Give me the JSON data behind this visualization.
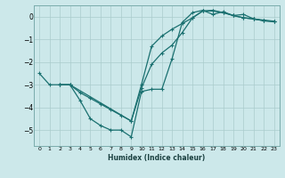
{
  "xlabel": "Humidex (Indice chaleur)",
  "bg_color": "#cce8ea",
  "grid_color": "#aacccc",
  "line_color": "#1a7070",
  "xlim": [
    -0.5,
    23.5
  ],
  "ylim": [
    -5.7,
    0.5
  ],
  "yticks": [
    0,
    -1,
    -2,
    -3,
    -4,
    -5
  ],
  "xticks": [
    0,
    1,
    2,
    3,
    4,
    5,
    6,
    7,
    8,
    9,
    10,
    11,
    12,
    13,
    14,
    15,
    16,
    17,
    18,
    19,
    20,
    21,
    22,
    23
  ],
  "line1_x": [
    0,
    1,
    2,
    3,
    4,
    5,
    6,
    7,
    8,
    9,
    10,
    11,
    12,
    13,
    14,
    15,
    16,
    17,
    18,
    19,
    20,
    21,
    22,
    23
  ],
  "line1_y": [
    -2.5,
    -3.0,
    -3.0,
    -3.0,
    -3.7,
    -4.5,
    -4.8,
    -5.0,
    -5.0,
    -5.3,
    -3.3,
    -3.2,
    -3.2,
    -1.85,
    -0.25,
    0.18,
    0.28,
    0.1,
    0.22,
    0.05,
    0.1,
    -0.1,
    -0.15,
    -0.2
  ],
  "line2_x": [
    2,
    3,
    4,
    5,
    6,
    7,
    8,
    9,
    10,
    11,
    12,
    13,
    14,
    15,
    16,
    17,
    18,
    19,
    20,
    21,
    22,
    23
  ],
  "line2_y": [
    -3.0,
    -3.0,
    -3.35,
    -3.6,
    -3.85,
    -4.1,
    -4.35,
    -4.6,
    -3.15,
    -2.1,
    -1.6,
    -1.25,
    -0.7,
    -0.05,
    0.25,
    0.28,
    0.18,
    0.05,
    -0.05,
    -0.1,
    -0.18,
    -0.22
  ],
  "line3_x": [
    2,
    3,
    9,
    10,
    11,
    12,
    13,
    14,
    15,
    16,
    17,
    18,
    19,
    20,
    21,
    22,
    23
  ],
  "line3_y": [
    -3.0,
    -3.0,
    -4.6,
    -3.0,
    -1.3,
    -0.85,
    -0.55,
    -0.3,
    -0.05,
    0.25,
    0.25,
    0.18,
    0.05,
    -0.05,
    -0.1,
    -0.18,
    -0.22
  ],
  "marker_size": 3,
  "line_width": 0.9
}
